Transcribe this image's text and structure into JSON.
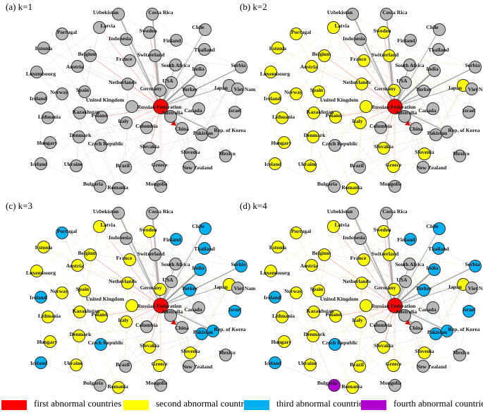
{
  "colors": {
    "first": "#ff0000",
    "second": "#ffff00",
    "third": "#00b0f0",
    "fourth": "#b000d0",
    "none": "#b8b8b8",
    "edge": "#c9c9c9"
  },
  "panels": [
    {
      "label": "(a)  k=1",
      "highlight": "Russian Federation",
      "third": [],
      "second": [],
      "fourth": []
    },
    {
      "label": "(b)  k=2",
      "highlight": "Russian Federation",
      "second": [
        "Latvia",
        "Portugal",
        "Estonia",
        "Sweden",
        "Belgium",
        "France",
        "Switzerland",
        "Austria",
        "Luxembourg",
        "Netherlands",
        "Spain",
        "Norway",
        "Germany",
        "Ireland",
        "United Kingdom",
        "Kazakhstan",
        "Lithuania",
        "Poland",
        "Italy",
        "Japan",
        "Hungary",
        "Denmark",
        "Slovakia",
        "Iceland",
        "Ukraine",
        "Slovenia",
        "Greece",
        "Romania"
      ],
      "third": [],
      "fourth": []
    },
    {
      "label": "(c)  k=3",
      "highlight": "Russian Federation",
      "second": [
        "Latvia",
        "Estonia",
        "Sweden",
        "Belgium",
        "France",
        "Austria",
        "Luxembourg",
        "Netherlands",
        "Spain",
        "Norway",
        "Germany",
        "United Kingdom",
        "Kazakhstan",
        "Lithuania",
        "Poland",
        "Italy",
        "Japan",
        "Hungary",
        "Denmark",
        "Slovakia",
        "Ukraine",
        "Slovenia",
        "Greece",
        "Romania"
      ],
      "third": [
        "Portugal",
        "Finland",
        "Chile",
        "Thailand",
        "India",
        "Serbia",
        "Ireland",
        "Turkey",
        "Israel",
        "Czech Republic",
        "Rep. of Korea",
        "Pakistan",
        "Iceland"
      ],
      "fourth": []
    },
    {
      "label": "(d)  k=4",
      "highlight": "Russian Federation",
      "second": [
        "Latvia",
        "Portugal",
        "Estonia",
        "Sweden",
        "Belgium",
        "France",
        "Switzerland",
        "Austria",
        "Luxembourg",
        "Netherlands",
        "Spain",
        "Norway",
        "Germany",
        "United Kingdom",
        "Kazakhstan",
        "Lithuania",
        "Poland",
        "Italy",
        "Japan",
        "Hungary",
        "Denmark",
        "Slovakia",
        "Ukraine",
        "Slovenia",
        "Greece",
        "Romania",
        "Brazil"
      ],
      "third": [
        "Finland",
        "Chile",
        "Thailand",
        "India",
        "Serbia",
        "Ireland",
        "Turkey",
        "Israel",
        "Czech Republic",
        "Rep. of Korea",
        "Pakistan",
        "Iceland"
      ],
      "fourth": [
        "Bulgaria"
      ]
    }
  ],
  "countries": [
    "Uzbekistan",
    "Costa Rica",
    "Latvia",
    "Portugal",
    "Indonesia",
    "Sweden",
    "Finland",
    "Chile",
    "Estonia",
    "Belgium",
    "France",
    "Switzerland",
    "Thailand",
    "Austria",
    "South Africa",
    "India",
    "Serbia",
    "Luxembourg",
    "Netherlands",
    "USA",
    "Germany",
    "Norway",
    "Spain",
    "Turkey",
    "Japan",
    "Viet Nam",
    "Ireland",
    "United Kingdom",
    "Russian Federation",
    "Australia",
    "Canada",
    "Israel",
    "Kazakhstan",
    "Poland",
    "Lithuania",
    "Italy",
    "Colombia",
    "China",
    "Rep. of Korea",
    "Pakistan",
    "Hungary",
    "Denmark",
    "Czech Republic",
    "Slovakia",
    "Slovenia",
    "Mexico",
    "Iceland",
    "Ukraine",
    "Brazil",
    "New Zealand",
    "Greece",
    "Bulgaria",
    "Romania",
    "Mongolia"
  ],
  "legend": [
    {
      "key": "first",
      "label": "first abnormal countries"
    },
    {
      "key": "second",
      "label": "second  abnormal countries"
    },
    {
      "key": "third",
      "label": "third  abnormal countries"
    },
    {
      "key": "fourth",
      "label": "fourth  abnormal countries"
    }
  ]
}
